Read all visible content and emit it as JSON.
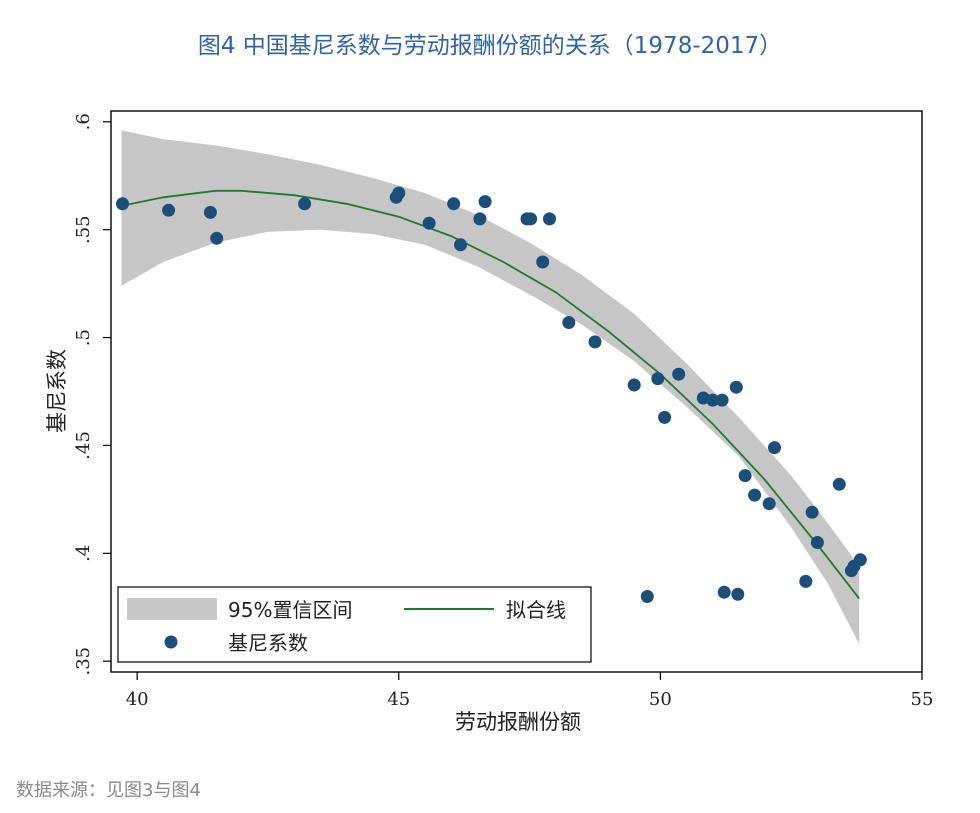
{
  "title": "图4  中国基尼系数与劳动报酬份额的关系（1978-2017）",
  "source": "数据来源：见图3与图4",
  "colors": {
    "title": "#2f63a8",
    "band": "#c6c6c6",
    "fit_line": "#1f7a2e",
    "points": "#1b4f7a"
  },
  "chart_data": {
    "type": "scatter",
    "xlabel": "劳动报酬份额",
    "ylabel": "基尼系数",
    "xlim": [
      39.5,
      55
    ],
    "ylim": [
      0.345,
      0.605
    ],
    "xticks": [
      {
        "value": 40,
        "label": "40"
      },
      {
        "value": 45,
        "label": "45"
      },
      {
        "value": 50,
        "label": "50"
      },
      {
        "value": 55,
        "label": "55"
      }
    ],
    "yticks": [
      {
        "value": 0.35,
        "label": ".35"
      },
      {
        "value": 0.4,
        "label": ".4"
      },
      {
        "value": 0.45,
        "label": ".45"
      },
      {
        "value": 0.5,
        "label": ".5"
      },
      {
        "value": 0.55,
        "label": ".55"
      },
      {
        "value": 0.6,
        "label": ".6"
      }
    ],
    "grid": false,
    "legend_position": "bottom-left",
    "legend": {
      "band_label": "95%置信区间",
      "line_label": "拟合线",
      "points_label": "基尼系数"
    },
    "points": [
      [
        39.72,
        0.562
      ],
      [
        40.6,
        0.559
      ],
      [
        41.4,
        0.558
      ],
      [
        41.52,
        0.546
      ],
      [
        43.2,
        0.562
      ],
      [
        44.95,
        0.565
      ],
      [
        45.0,
        0.567
      ],
      [
        45.58,
        0.553
      ],
      [
        46.05,
        0.562
      ],
      [
        46.18,
        0.543
      ],
      [
        46.55,
        0.555
      ],
      [
        46.65,
        0.563
      ],
      [
        47.45,
        0.555
      ],
      [
        47.52,
        0.555
      ],
      [
        47.75,
        0.535
      ],
      [
        47.88,
        0.555
      ],
      [
        48.25,
        0.507
      ],
      [
        48.75,
        0.498
      ],
      [
        49.5,
        0.478
      ],
      [
        49.75,
        0.38
      ],
      [
        49.95,
        0.481
      ],
      [
        50.08,
        0.463
      ],
      [
        50.35,
        0.483
      ],
      [
        50.82,
        0.472
      ],
      [
        51.0,
        0.471
      ],
      [
        51.18,
        0.471
      ],
      [
        51.22,
        0.382
      ],
      [
        51.45,
        0.477
      ],
      [
        51.48,
        0.381
      ],
      [
        51.62,
        0.436
      ],
      [
        51.8,
        0.427
      ],
      [
        52.08,
        0.423
      ],
      [
        52.18,
        0.449
      ],
      [
        52.78,
        0.387
      ],
      [
        52.9,
        0.419
      ],
      [
        53.0,
        0.405
      ],
      [
        53.42,
        0.432
      ],
      [
        53.65,
        0.392
      ],
      [
        53.7,
        0.394
      ],
      [
        53.82,
        0.397
      ]
    ],
    "fit_line": {
      "x": [
        39.7,
        40.5,
        41.5,
        42.0,
        43.0,
        44.0,
        45.0,
        46.0,
        47.0,
        48.0,
        49.0,
        50.0,
        51.0,
        52.0,
        53.0,
        53.8
      ],
      "y": [
        0.561,
        0.565,
        0.568,
        0.568,
        0.566,
        0.562,
        0.556,
        0.547,
        0.535,
        0.521,
        0.503,
        0.483,
        0.46,
        0.434,
        0.404,
        0.379
      ]
    },
    "ci_band": {
      "x": [
        39.7,
        40.5,
        41.5,
        42.5,
        43.5,
        44.5,
        45.5,
        46.5,
        47.5,
        48.5,
        49.5,
        50.5,
        51.5,
        52.5,
        53.2,
        53.8
      ],
      "upper": [
        0.596,
        0.592,
        0.589,
        0.585,
        0.58,
        0.574,
        0.567,
        0.557,
        0.544,
        0.529,
        0.511,
        0.488,
        0.463,
        0.436,
        0.414,
        0.394
      ],
      "lower": [
        0.524,
        0.535,
        0.544,
        0.549,
        0.55,
        0.548,
        0.543,
        0.533,
        0.52,
        0.506,
        0.489,
        0.468,
        0.445,
        0.412,
        0.386,
        0.358
      ]
    }
  }
}
